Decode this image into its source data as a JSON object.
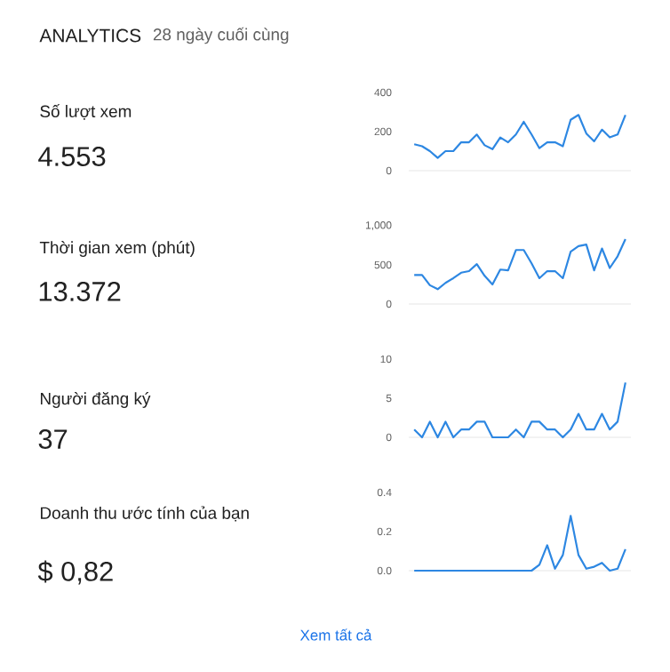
{
  "chart_data": [
    {
      "type": "line",
      "ylabel": "Số lượt xem",
      "annotations": [
        "4.553",
        "ANALYTICS",
        "28 ngày cuối cùng"
      ],
      "color": "#2d87e2",
      "marker": "none",
      "tick_labels": "y",
      "ylim": [
        0,
        400
      ],
      "yticks": [
        0,
        200,
        400
      ],
      "categories": [
        null,
        null,
        null,
        null,
        null,
        null,
        null,
        null,
        null,
        null,
        null,
        null,
        null,
        null,
        null,
        null,
        null,
        null,
        null,
        null,
        null,
        null,
        null,
        null,
        null,
        null,
        null,
        null
      ],
      "values": [
        135,
        125,
        100,
        65,
        100,
        100,
        145,
        145,
        185,
        130,
        110,
        170,
        145,
        185,
        250,
        185,
        115,
        145,
        145,
        125,
        260,
        285,
        190,
        150,
        210,
        170,
        185,
        285
      ]
    },
    {
      "type": "line",
      "ylabel": "Thời gian xem (phút)",
      "annotations": [
        "13.372"
      ],
      "color": "#2d87e2",
      "marker": "none",
      "tick_labels": "y",
      "ylim": [
        0,
        1000
      ],
      "yticks": [
        0,
        500,
        {
          "value": 1000,
          "label": "1,000"
        }
      ],
      "categories": [
        null,
        null,
        null,
        null,
        null,
        null,
        null,
        null,
        null,
        null,
        null,
        null,
        null,
        null,
        null,
        null,
        null,
        null,
        null,
        null,
        null,
        null,
        null,
        null,
        null,
        null,
        null,
        null
      ],
      "values": [
        370,
        370,
        240,
        190,
        270,
        330,
        400,
        420,
        510,
        360,
        250,
        440,
        430,
        690,
        690,
        520,
        330,
        420,
        420,
        330,
        670,
        740,
        760,
        430,
        710,
        460,
        610,
        830
      ]
    },
    {
      "type": "line",
      "ylabel": "Người đăng ký",
      "annotations": [
        "37"
      ],
      "color": "#2d87e2",
      "marker": "none",
      "tick_labels": "y",
      "ylim": [
        0,
        10
      ],
      "yticks": [
        0,
        5,
        10
      ],
      "categories": [
        null,
        null,
        null,
        null,
        null,
        null,
        null,
        null,
        null,
        null,
        null,
        null,
        null,
        null,
        null,
        null,
        null,
        null,
        null,
        null,
        null,
        null,
        null,
        null,
        null,
        null,
        null,
        null
      ],
      "values": [
        1,
        0,
        2,
        0,
        2,
        0,
        1,
        1,
        2,
        2,
        0,
        0,
        0,
        1,
        0,
        2,
        2,
        1,
        1,
        0,
        1,
        3,
        1,
        1,
        3,
        1,
        2,
        7
      ]
    },
    {
      "type": "line",
      "ylabel": "Doanh thu ước tính của bạn",
      "color": "#2d87e2",
      "marker": "none",
      "tick_labels": "y",
      "ylim": [
        0,
        0.4
      ],
      "yticks": [
        {
          "value": 0,
          "label": "0.0"
        },
        0.2,
        0.4
      ],
      "categories": [
        null,
        null,
        null,
        null,
        null,
        null,
        null,
        null,
        null,
        null,
        null,
        null,
        null,
        null,
        null,
        null,
        null,
        null,
        null,
        null,
        null,
        null,
        null,
        null,
        null,
        null,
        null,
        null
      ],
      "values": [
        0,
        0,
        0,
        0,
        0,
        0,
        0,
        0,
        0,
        0,
        0,
        0,
        0,
        0,
        0,
        0,
        0.03,
        0.13,
        0.01,
        0.08,
        0.28,
        0.08,
        0.01,
        0.02,
        0.04,
        0.0,
        0.01,
        0.11
      ],
      "annotations": [
        "$ 0,82",
        "Xem tất cả"
      ]
    }
  ]
}
